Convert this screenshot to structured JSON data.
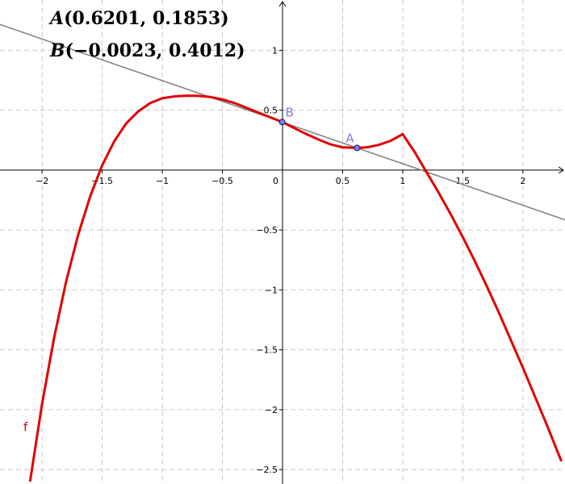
{
  "chart_data": {
    "type": "line",
    "title": "",
    "xlabel": "",
    "ylabel": "",
    "xlim": [
      -2.35,
      2.35
    ],
    "ylim": [
      -2.62,
      1.42
    ],
    "grid": true,
    "xticks": [
      -2,
      -1.5,
      -1,
      -0.5,
      0.5,
      1,
      1.5,
      2
    ],
    "xtick_labels": [
      "−2",
      "−1.5",
      "−1",
      "−0.5",
      "0.5",
      "1",
      "1.5",
      "2"
    ],
    "yticks": [
      1,
      0.5,
      -0.5,
      -1,
      -1.5,
      -2,
      -2.5
    ],
    "ytick_labels": [
      "1",
      "0.5",
      "−0.5",
      "−1",
      "−1.5",
      "−2",
      "−2.5"
    ],
    "origin_label": "0",
    "series": [
      {
        "name": "f",
        "color": "#e00000",
        "points": [
          [
            -2.1,
            -2.6
          ],
          [
            -2.0,
            -1.95
          ],
          [
            -1.9,
            -1.4
          ],
          [
            -1.8,
            -0.93
          ],
          [
            -1.7,
            -0.54
          ],
          [
            -1.6,
            -0.22
          ],
          [
            -1.5,
            0.04
          ],
          [
            -1.4,
            0.24
          ],
          [
            -1.3,
            0.39
          ],
          [
            -1.2,
            0.49
          ],
          [
            -1.1,
            0.56
          ],
          [
            -1.0,
            0.6
          ],
          [
            -0.9,
            0.615
          ],
          [
            -0.8,
            0.621
          ],
          [
            -0.7,
            0.62
          ],
          [
            -0.6,
            0.61
          ],
          [
            -0.5,
            0.59
          ],
          [
            -0.4,
            0.56
          ],
          [
            -0.3,
            0.52
          ],
          [
            -0.2,
            0.48
          ],
          [
            -0.1,
            0.44
          ],
          [
            0.0,
            0.401
          ],
          [
            0.1,
            0.35
          ],
          [
            0.2,
            0.3
          ],
          [
            0.3,
            0.255
          ],
          [
            0.4,
            0.215
          ],
          [
            0.5,
            0.19
          ],
          [
            0.62,
            0.185
          ],
          [
            0.7,
            0.19
          ],
          [
            0.8,
            0.21
          ],
          [
            0.9,
            0.245
          ],
          [
            1.0,
            0.3
          ],
          [
            1.1,
            0.15
          ],
          [
            1.2,
            -0.02
          ],
          [
            1.3,
            -0.19
          ],
          [
            1.4,
            -0.37
          ],
          [
            1.5,
            -0.56
          ],
          [
            1.6,
            -0.76
          ],
          [
            1.7,
            -0.97
          ],
          [
            1.8,
            -1.19
          ],
          [
            1.9,
            -1.42
          ],
          [
            2.0,
            -1.65
          ],
          [
            2.1,
            -1.89
          ],
          [
            2.2,
            -2.13
          ],
          [
            2.32,
            -2.43
          ]
        ]
      },
      {
        "name": "line",
        "color": "#808080",
        "through": [
          [
            0.6201,
            0.1853
          ],
          [
            -0.0023,
            0.4012
          ]
        ]
      }
    ],
    "points": [
      {
        "label": "A",
        "x": 0.6201,
        "y": 0.1853,
        "color": "#7f7fe8"
      },
      {
        "label": "B",
        "x": -0.0023,
        "y": 0.4012,
        "color": "#7f7fe8"
      }
    ],
    "curve_label": "f",
    "annotations": {
      "a_name": "A",
      "a_coords": "(0.6201, 0.1853)",
      "b_name": "B",
      "b_coords": "(−0.0023, 0.4012)"
    }
  }
}
